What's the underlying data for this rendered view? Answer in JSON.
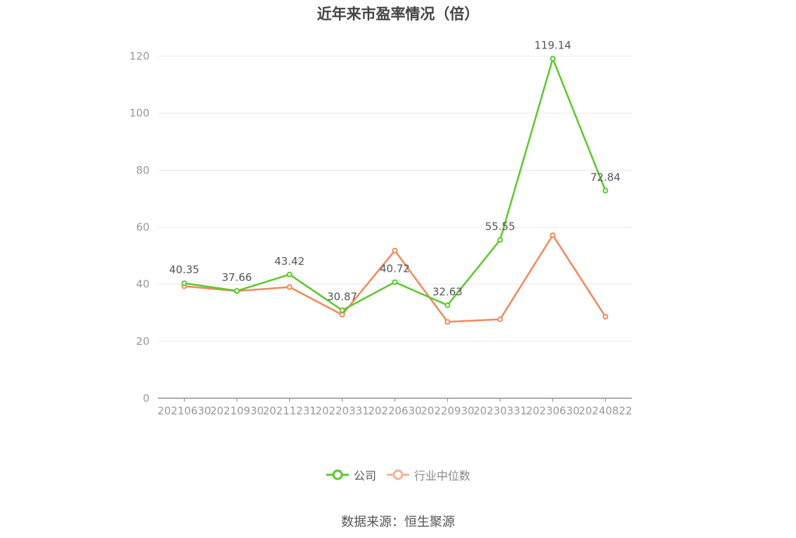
{
  "chart_data": {
    "type": "line",
    "title": "近年来市盈率情况（倍）",
    "xlabel": "",
    "ylabel": "",
    "categories": [
      "20210630",
      "20210930",
      "20211231",
      "20220331",
      "20220630",
      "20220930",
      "20230331",
      "20230630",
      "20240822"
    ],
    "ylim": [
      0,
      120
    ],
    "yticks": [
      0,
      20,
      40,
      60,
      80,
      100,
      120
    ],
    "grid": true,
    "legend_position": "bottom",
    "series": [
      {
        "name": "公司",
        "color": "#5cc82c",
        "values": [
          40.35,
          37.66,
          43.42,
          30.87,
          40.72,
          32.63,
          55.55,
          119.14,
          72.84
        ],
        "labels": [
          "40.35",
          "37.66",
          "43.42",
          "30.87",
          "40.72",
          "32.63",
          "55.55",
          "119.14",
          "72.84"
        ]
      },
      {
        "name": "行业中位数",
        "color": "#f0895a",
        "values": [
          39.3,
          37.6,
          39.0,
          29.3,
          51.8,
          26.8,
          27.7,
          57.2,
          28.6
        ]
      }
    ]
  },
  "legend": {
    "company": "公司",
    "industry": "行业中位数",
    "company_color": "#5cc82c",
    "industry_color": "#f4b396"
  },
  "source": "数据来源：恒生聚源"
}
